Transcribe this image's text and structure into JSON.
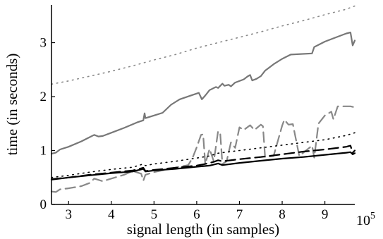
{
  "chart_data": {
    "type": "line",
    "xlabel": "signal length (in samples)",
    "ylabel": "time (in seconds)",
    "x_multiplier_label": "10",
    "x_multiplier_exponent": "5",
    "xlim": [
      2.6,
      9.7
    ],
    "ylim": [
      0,
      3.7
    ],
    "xticks": [
      3,
      4,
      5,
      6,
      7,
      8,
      9
    ],
    "yticks": [
      0,
      1,
      2,
      3
    ],
    "grid": false,
    "legend": "none",
    "series": [
      {
        "color": "#888888",
        "dash": "dotted",
        "points": [
          [
            2.6,
            2.23
          ],
          [
            3.0,
            2.29
          ],
          [
            3.5,
            2.38
          ],
          [
            4.0,
            2.47
          ],
          [
            4.5,
            2.57
          ],
          [
            5.0,
            2.68
          ],
          [
            5.5,
            2.78
          ],
          [
            6.0,
            2.9
          ],
          [
            6.5,
            3.0
          ],
          [
            7.0,
            3.1
          ],
          [
            7.5,
            3.2
          ],
          [
            8.0,
            3.31
          ],
          [
            8.5,
            3.41
          ],
          [
            9.0,
            3.52
          ],
          [
            9.5,
            3.62
          ],
          [
            9.7,
            3.68
          ]
        ]
      },
      {
        "color": "#777777",
        "dash": "solid",
        "points": [
          [
            2.6,
            0.94
          ],
          [
            2.7,
            0.96
          ],
          [
            2.8,
            1.02
          ],
          [
            3.0,
            1.07
          ],
          [
            3.3,
            1.17
          ],
          [
            3.6,
            1.29
          ],
          [
            3.7,
            1.26
          ],
          [
            3.8,
            1.27
          ],
          [
            4.0,
            1.33
          ],
          [
            4.3,
            1.42
          ],
          [
            4.6,
            1.52
          ],
          [
            4.75,
            1.56
          ],
          [
            4.78,
            1.69
          ],
          [
            4.8,
            1.6
          ],
          [
            5.0,
            1.65
          ],
          [
            5.2,
            1.7
          ],
          [
            5.4,
            1.85
          ],
          [
            5.6,
            1.95
          ],
          [
            5.9,
            2.03
          ],
          [
            6.05,
            2.07
          ],
          [
            6.12,
            1.95
          ],
          [
            6.2,
            2.02
          ],
          [
            6.3,
            2.12
          ],
          [
            6.45,
            2.18
          ],
          [
            6.5,
            2.16
          ],
          [
            6.6,
            2.24
          ],
          [
            6.65,
            2.2
          ],
          [
            6.75,
            2.22
          ],
          [
            6.8,
            2.19
          ],
          [
            6.9,
            2.26
          ],
          [
            7.1,
            2.32
          ],
          [
            7.2,
            2.38
          ],
          [
            7.25,
            2.4
          ],
          [
            7.3,
            2.3
          ],
          [
            7.4,
            2.33
          ],
          [
            7.5,
            2.38
          ],
          [
            7.6,
            2.48
          ],
          [
            7.8,
            2.6
          ],
          [
            8.0,
            2.7
          ],
          [
            8.2,
            2.78
          ],
          [
            8.7,
            2.8
          ],
          [
            8.75,
            2.92
          ],
          [
            8.9,
            2.98
          ],
          [
            9.0,
            3.02
          ],
          [
            9.2,
            3.08
          ],
          [
            9.5,
            3.17
          ],
          [
            9.6,
            3.19
          ],
          [
            9.65,
            2.95
          ],
          [
            9.7,
            3.04
          ]
        ]
      },
      {
        "color": "#888888",
        "dash": "dashed",
        "points": [
          [
            2.6,
            0.24
          ],
          [
            2.7,
            0.23
          ],
          [
            2.8,
            0.28
          ],
          [
            3.0,
            0.3
          ],
          [
            3.3,
            0.34
          ],
          [
            3.5,
            0.4
          ],
          [
            3.6,
            0.48
          ],
          [
            3.8,
            0.43
          ],
          [
            4.0,
            0.48
          ],
          [
            4.3,
            0.55
          ],
          [
            4.5,
            0.62
          ],
          [
            4.7,
            0.57
          ],
          [
            4.75,
            0.44
          ],
          [
            4.8,
            0.55
          ],
          [
            5.0,
            0.6
          ],
          [
            5.3,
            0.65
          ],
          [
            5.6,
            0.7
          ],
          [
            5.8,
            0.73
          ],
          [
            5.9,
            0.86
          ],
          [
            6.0,
            1.06
          ],
          [
            6.1,
            1.29
          ],
          [
            6.15,
            1.3
          ],
          [
            6.2,
            0.75
          ],
          [
            6.3,
            1.03
          ],
          [
            6.4,
            0.8
          ],
          [
            6.5,
            1.36
          ],
          [
            6.55,
            1.32
          ],
          [
            6.6,
            0.75
          ],
          [
            6.7,
            0.8
          ],
          [
            6.8,
            1.15
          ],
          [
            6.9,
            1.05
          ],
          [
            7.0,
            1.43
          ],
          [
            7.1,
            1.38
          ],
          [
            7.25,
            1.47
          ],
          [
            7.35,
            1.38
          ],
          [
            7.5,
            1.48
          ],
          [
            7.55,
            1.45
          ],
          [
            7.6,
            0.88
          ],
          [
            7.8,
            0.9
          ],
          [
            8.0,
            1.46
          ],
          [
            8.05,
            1.57
          ],
          [
            8.15,
            1.48
          ],
          [
            8.25,
            1.49
          ],
          [
            8.4,
            0.9
          ],
          [
            8.7,
            1.09
          ],
          [
            8.75,
            0.87
          ],
          [
            8.85,
            1.5
          ],
          [
            9.0,
            1.65
          ],
          [
            9.15,
            1.72
          ],
          [
            9.2,
            1.58
          ],
          [
            9.3,
            1.82
          ],
          [
            9.6,
            1.82
          ],
          [
            9.7,
            1.8
          ]
        ]
      },
      {
        "color": "#000000",
        "dash": "dotted",
        "points": [
          [
            2.6,
            0.5
          ],
          [
            3.0,
            0.54
          ],
          [
            3.5,
            0.6
          ],
          [
            4.0,
            0.65
          ],
          [
            4.5,
            0.69
          ],
          [
            4.75,
            0.75
          ],
          [
            4.8,
            0.72
          ],
          [
            5.0,
            0.75
          ],
          [
            5.5,
            0.8
          ],
          [
            6.0,
            0.86
          ],
          [
            6.3,
            0.9
          ],
          [
            6.5,
            0.95
          ],
          [
            7.0,
            1.0
          ],
          [
            7.5,
            1.05
          ],
          [
            8.0,
            1.1
          ],
          [
            8.5,
            1.15
          ],
          [
            9.0,
            1.2
          ],
          [
            9.5,
            1.28
          ],
          [
            9.7,
            1.33
          ]
        ]
      },
      {
        "color": "#000000",
        "dash": "dashed",
        "points": [
          [
            2.6,
            0.47
          ],
          [
            3.0,
            0.5
          ],
          [
            3.5,
            0.55
          ],
          [
            4.0,
            0.59
          ],
          [
            4.5,
            0.63
          ],
          [
            4.75,
            0.68
          ],
          [
            4.8,
            0.62
          ],
          [
            5.0,
            0.64
          ],
          [
            5.5,
            0.68
          ],
          [
            6.0,
            0.72
          ],
          [
            6.2,
            0.75
          ],
          [
            6.4,
            0.79
          ],
          [
            6.5,
            0.82
          ],
          [
            6.6,
            0.8
          ],
          [
            7.0,
            0.84
          ],
          [
            7.5,
            0.88
          ],
          [
            8.0,
            0.93
          ],
          [
            8.5,
            0.98
          ],
          [
            9.0,
            1.02
          ],
          [
            9.5,
            1.07
          ],
          [
            9.6,
            1.09
          ],
          [
            9.65,
            0.96
          ],
          [
            9.7,
            1.0
          ]
        ]
      },
      {
        "color": "#000000",
        "dash": "solid",
        "points": [
          [
            2.6,
            0.46
          ],
          [
            3.0,
            0.5
          ],
          [
            3.5,
            0.54
          ],
          [
            4.0,
            0.58
          ],
          [
            4.5,
            0.61
          ],
          [
            4.75,
            0.66
          ],
          [
            4.8,
            0.61
          ],
          [
            5.0,
            0.63
          ],
          [
            5.5,
            0.66
          ],
          [
            6.0,
            0.7
          ],
          [
            6.3,
            0.72
          ],
          [
            6.5,
            0.76
          ],
          [
            6.6,
            0.73
          ],
          [
            7.0,
            0.77
          ],
          [
            7.5,
            0.81
          ],
          [
            8.0,
            0.85
          ],
          [
            8.5,
            0.88
          ],
          [
            9.0,
            0.92
          ],
          [
            9.5,
            0.96
          ],
          [
            9.6,
            0.97
          ],
          [
            9.65,
            0.93
          ],
          [
            9.7,
            0.95
          ]
        ]
      }
    ]
  }
}
